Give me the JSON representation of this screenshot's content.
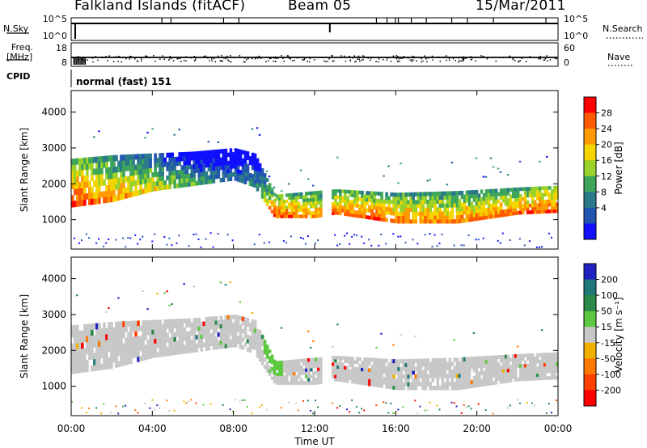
{
  "header": {
    "station": "Falkland Islands (fitACF)",
    "beam": "Beam 05",
    "date": "15/Mar/2011"
  },
  "strip_panels": {
    "nsky_label": "N.Sky",
    "nsky_ticks": [
      "10^5",
      "10^0"
    ],
    "nsearch_label": "N.Search",
    "nsearch_ticks": [
      "10^5",
      "10^0"
    ],
    "freq_label": "Freq.",
    "freq_unit": "[MHz]",
    "freq_ticks": [
      "18",
      "8"
    ],
    "nave_label": "Nave",
    "nave_ticks": [
      "60",
      "0"
    ],
    "cpid_label": "CPID",
    "cpid_text": "normal (fast) 151"
  },
  "chart_data": [
    {
      "type": "heatmap",
      "parameter": "Power",
      "ylabel": "Slant Range [km]",
      "ylim": [
        180,
        4600
      ],
      "yticks": [
        1000,
        2000,
        3000,
        4000
      ],
      "xlim": [
        "00:00",
        "24:00"
      ],
      "xlabel": "Time UT",
      "xticks": [
        "00:00",
        "04:00",
        "08:00",
        "12:00",
        "16:00",
        "20:00",
        "00:00"
      ],
      "colorbar": {
        "label": "Power [dB]",
        "ticks": [
          "28",
          "24",
          "20",
          "16",
          "12",
          "8",
          "4"
        ],
        "colors": [
          "#ff0000",
          "#ff5a00",
          "#ff9a00",
          "#f5d500",
          "#9ad22a",
          "#3ea65a",
          "#2b7a8a",
          "#2255b0",
          "#1010ff"
        ]
      },
      "data_gap": [
        "12:20",
        "12:50"
      ],
      "echo_bands_km": [
        {
          "t": 0,
          "low": 1350,
          "high": 2700,
          "power_db": 26
        },
        {
          "t": 2,
          "low": 1500,
          "high": 2800,
          "power_db": 22
        },
        {
          "t": 4,
          "low": 1800,
          "high": 2850,
          "power_db": 18
        },
        {
          "t": 6,
          "low": 1950,
          "high": 2900,
          "power_db": 12
        },
        {
          "t": 8,
          "low": 2100,
          "high": 3000,
          "power_db": 8
        },
        {
          "t": 9,
          "low": 1900,
          "high": 2850,
          "power_db": 10
        },
        {
          "t": 10,
          "low": 1050,
          "high": 1700,
          "power_db": 26
        },
        {
          "t": 12,
          "low": 1050,
          "high": 1800,
          "power_db": 22
        },
        {
          "t": 13,
          "low": 1150,
          "high": 1850,
          "power_db": 24
        },
        {
          "t": 16,
          "low": 900,
          "high": 1750,
          "power_db": 24
        },
        {
          "t": 19,
          "low": 900,
          "high": 1800,
          "power_db": 22
        },
        {
          "t": 22,
          "low": 1150,
          "high": 1900,
          "power_db": 24
        },
        {
          "t": 24,
          "low": 1200,
          "high": 1950,
          "power_db": 26
        }
      ]
    },
    {
      "type": "heatmap",
      "parameter": "Velocity",
      "ylabel": "Slant Range [km]",
      "ylim": [
        180,
        4600
      ],
      "yticks": [
        1000,
        2000,
        3000,
        4000
      ],
      "xlim": [
        "00:00",
        "24:00"
      ],
      "xlabel": "Time UT",
      "xticks": [
        "00:00",
        "04:00",
        "08:00",
        "12:00",
        "16:00",
        "20:00",
        "00:00"
      ],
      "colorbar": {
        "label": "Velocity [m s⁻¹]",
        "ticks": [
          "200",
          "100",
          "50",
          "15",
          "-15",
          "-50",
          "-100",
          "-200"
        ],
        "colors": [
          "#2020c0",
          "#207878",
          "#2a8a4a",
          "#5cc840",
          "#c8c8c8",
          "#f0b000",
          "#ff7800",
          "#ff4000",
          "#ff0000"
        ]
      },
      "data_gap": [
        "12:20",
        "12:50"
      ],
      "ground_scatter_color": "#c8c8c8",
      "notable_feature": {
        "t_start": 9.5,
        "t_end": 10.3,
        "velocity_ms": 50,
        "color": "#5cc840"
      }
    }
  ]
}
